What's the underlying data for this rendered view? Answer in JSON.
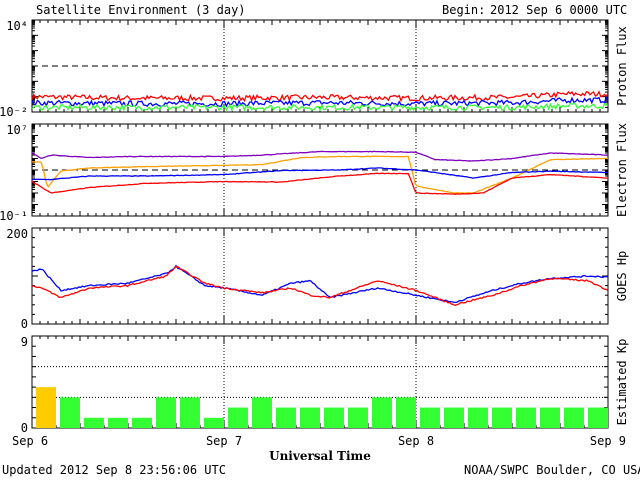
{
  "header": {
    "title": "Satellite Environment (3 day)",
    "begin_label": "Begin:",
    "begin_value": "2012 Sep 6 0000 UTC"
  },
  "footer": {
    "updated": "Updated 2012 Sep  8 23:56:06 UTC",
    "source": "NOAA/SWPC Boulder, CO USA"
  },
  "colors": {
    "red": "#ff0000",
    "blue": "#0000ff",
    "green": "#33ff33",
    "purple": "#7f00bf",
    "orange": "#ff9f00",
    "kp_green": "#33ff33",
    "kp_yellow": "#ffcc00"
  },
  "chart_data": [
    {
      "type": "line",
      "ylabel": "Proton Flux",
      "yscale": "log",
      "ylim": [
        0.01,
        10000
      ],
      "ytick_labels": [
        "10⁴",
        "10⁻²"
      ],
      "threshold": 10,
      "x_range_days": [
        0,
        3
      ],
      "series": [
        {
          "color": "red",
          "x": [
            0,
            0.5,
            1,
            1.5,
            2,
            2.5,
            2.8,
            3
          ],
          "values": [
            0.1,
            0.08,
            0.08,
            0.09,
            0.08,
            0.09,
            0.15,
            0.15
          ]
        },
        {
          "color": "blue",
          "x": [
            0,
            0.5,
            1,
            1.5,
            2,
            2.5,
            2.8,
            3
          ],
          "values": [
            0.04,
            0.035,
            0.035,
            0.04,
            0.035,
            0.04,
            0.06,
            0.06
          ]
        },
        {
          "color": "green",
          "x": [
            0,
            0.5,
            1,
            1.5,
            2,
            2.5,
            2.8,
            3
          ],
          "values": [
            0.02,
            0.02,
            0.02,
            0.02,
            0.02,
            0.02,
            0.025,
            0.025
          ]
        }
      ]
    },
    {
      "type": "line",
      "ylabel": "Electron Flux",
      "yscale": "log",
      "ylim": [
        0.1,
        10000000
      ],
      "ytick_labels": [
        "10⁷",
        "10⁻¹"
      ],
      "threshold": 1000,
      "x_range_days": [
        0,
        3
      ],
      "series": [
        {
          "color": "purple",
          "x": [
            0,
            0.05,
            0.1,
            0.3,
            0.5,
            1.0,
            1.2,
            1.5,
            1.8,
            2.0,
            2.1,
            2.3,
            2.5,
            2.7,
            3.0
          ],
          "values": [
            30000,
            10000,
            20000,
            12000,
            15000,
            15000,
            20000,
            40000,
            40000,
            35000,
            8000,
            6000,
            10000,
            30000,
            20000
          ]
        },
        {
          "color": "orange",
          "x": [
            0,
            0.05,
            0.08,
            0.15,
            0.3,
            0.6,
            1.0,
            1.2,
            1.4,
            1.6,
            1.8,
            1.96,
            2.0,
            2.2,
            2.3,
            2.5,
            2.7,
            3.0
          ],
          "values": [
            5000,
            5000,
            30,
            800,
            1500,
            2000,
            2500,
            3000,
            12000,
            15000,
            15000,
            15000,
            40,
            10,
            10,
            200,
            8000,
            10000
          ]
        },
        {
          "color": "blue",
          "x": [
            0,
            0.1,
            0.3,
            0.6,
            1.0,
            1.3,
            1.6,
            1.8,
            2.0,
            2.1,
            2.3,
            2.5,
            2.7,
            3.0
          ],
          "values": [
            150,
            150,
            300,
            300,
            400,
            900,
            1000,
            1500,
            1000,
            600,
            200,
            600,
            800,
            600
          ]
        },
        {
          "color": "red",
          "x": [
            0,
            0.1,
            0.3,
            0.6,
            1.0,
            1.3,
            1.6,
            1.8,
            1.96,
            2.0,
            2.2,
            2.35,
            2.5,
            2.7,
            3.0
          ],
          "values": [
            100,
            10,
            30,
            70,
            100,
            90,
            300,
            500,
            500,
            10,
            8,
            10,
            200,
            400,
            200
          ]
        }
      ]
    },
    {
      "type": "line",
      "ylabel": "GOES Hp",
      "ylim": [
        0,
        200
      ],
      "ytick_labels": [
        "200",
        "0"
      ],
      "x_range_days": [
        0,
        3
      ],
      "series": [
        {
          "color": "blue",
          "x": [
            0,
            0.05,
            0.15,
            0.3,
            0.5,
            0.7,
            0.75,
            0.9,
            1.0,
            1.2,
            1.35,
            1.45,
            1.55,
            1.8,
            2.0,
            2.2,
            2.4,
            2.55,
            2.7,
            2.9,
            3.0
          ],
          "values": [
            110,
            115,
            70,
            80,
            85,
            105,
            120,
            80,
            75,
            60,
            85,
            90,
            55,
            75,
            60,
            45,
            70,
            85,
            95,
            100,
            98
          ]
        },
        {
          "color": "red",
          "x": [
            0,
            0.05,
            0.15,
            0.3,
            0.5,
            0.7,
            0.75,
            0.9,
            1.0,
            1.2,
            1.35,
            1.45,
            1.55,
            1.8,
            2.0,
            2.2,
            2.4,
            2.55,
            2.7,
            2.9,
            3.0
          ],
          "values": [
            80,
            75,
            55,
            75,
            80,
            100,
            120,
            85,
            75,
            65,
            75,
            60,
            55,
            90,
            70,
            40,
            60,
            80,
            95,
            90,
            70
          ]
        }
      ]
    },
    {
      "type": "bar",
      "ylabel": "Estimated Kp",
      "ylim": [
        0,
        9
      ],
      "ytick_labels": [
        "9",
        "0"
      ],
      "xlabel": "Universal Time",
      "x_tick_labels": [
        "Sep 6",
        "Sep 7",
        "Sep 8",
        "Sep 9"
      ],
      "values": [
        4,
        3,
        1,
        1,
        1,
        3,
        3,
        1,
        2,
        3,
        2,
        2,
        2,
        2,
        3,
        3,
        2,
        2,
        2,
        2,
        2,
        2,
        2,
        2
      ],
      "bar_colors": [
        "kp_yellow",
        "kp_green",
        "kp_green",
        "kp_green",
        "kp_green",
        "kp_green",
        "kp_green",
        "kp_green",
        "kp_green",
        "kp_green",
        "kp_green",
        "kp_green",
        "kp_green",
        "kp_green",
        "kp_green",
        "kp_green",
        "kp_green",
        "kp_green",
        "kp_green",
        "kp_green",
        "kp_green",
        "kp_green",
        "kp_green",
        "kp_green"
      ]
    }
  ]
}
